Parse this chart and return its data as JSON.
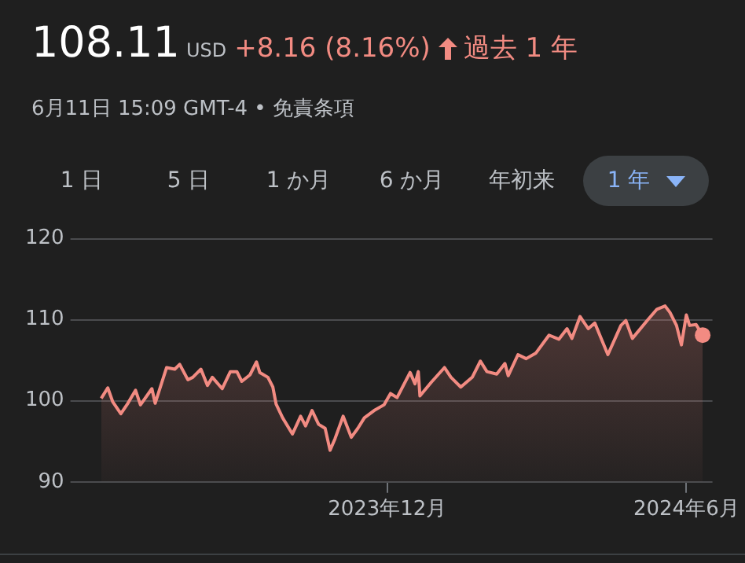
{
  "chart_data": {
    "type": "area",
    "title": "108.11",
    "subtitle": "6月11日 15:09 GMT-4 • 免責条項",
    "annotations": [
      "USD",
      "+8.16 (8.16%)",
      "過去 1 年",
      "1 日",
      "5 日",
      "1 か月",
      "6 か月",
      "年初来",
      "1 年"
    ],
    "x": [
      "2023-06-09",
      "2023-06-13",
      "2023-06-16",
      "2023-06-21",
      "2023-06-25",
      "2023-06-30",
      "2023-07-03",
      "2023-07-10",
      "2023-07-12",
      "2023-07-19",
      "2023-07-24",
      "2023-07-27",
      "2023-08-01",
      "2023-08-04",
      "2023-08-09",
      "2023-08-13",
      "2023-08-16",
      "2023-08-22",
      "2023-08-27",
      "2023-08-31",
      "2023-09-03",
      "2023-09-08",
      "2023-09-12",
      "2023-09-14",
      "2023-09-19",
      "2023-09-22",
      "2023-09-24",
      "2023-09-28",
      "2023-10-04",
      "2023-10-09",
      "2023-10-12",
      "2023-10-16",
      "2023-10-20",
      "2023-10-24",
      "2023-10-27",
      "2023-10-30",
      "2023-11-04",
      "2023-11-09",
      "2023-11-13",
      "2023-11-17",
      "2023-11-23",
      "2023-11-29",
      "2023-12-03",
      "2023-12-07",
      "2023-12-15",
      "2023-12-18",
      "2023-12-20",
      "2023-12-21",
      "2023-12-28",
      "2024-01-05",
      "2024-01-09",
      "2024-01-15",
      "2024-01-22",
      "2024-01-27",
      "2024-01-31",
      "2024-02-06",
      "2024-02-11",
      "2024-02-13",
      "2024-02-19",
      "2024-02-24",
      "2024-03-01",
      "2024-03-09",
      "2024-03-15",
      "2024-03-20",
      "2024-03-23",
      "2024-03-28",
      "2024-04-02",
      "2024-04-06",
      "2024-04-14",
      "2024-04-22",
      "2024-04-25",
      "2024-04-29",
      "2024-05-08",
      "2024-05-14",
      "2024-05-19",
      "2024-05-22",
      "2024-05-26",
      "2024-05-29",
      "2024-06-01",
      "2024-06-03",
      "2024-06-07",
      "2024-06-11"
    ],
    "series": [
      {
        "color": "#f28b82",
        "values": [
          100.3,
          101.6,
          99.9,
          98.4,
          99.6,
          101.3,
          99.5,
          101.5,
          99.7,
          104.1,
          103.9,
          104.5,
          102.6,
          102.9,
          103.9,
          101.9,
          102.9,
          101.5,
          103.6,
          103.6,
          102.4,
          103.2,
          104.8,
          103.5,
          102.9,
          101.7,
          99.6,
          97.9,
          95.9,
          98.1,
          96.9,
          98.8,
          97.1,
          96.6,
          93.9,
          95.3,
          98.1,
          95.5,
          96.6,
          97.9,
          98.8,
          99.5,
          100.9,
          100.4,
          103.5,
          102.1,
          103.6,
          100.6,
          102.3,
          104.1,
          102.9,
          101.7,
          102.9,
          104.9,
          103.6,
          103.3,
          104.6,
          103.1,
          105.7,
          105.2,
          105.9,
          108.1,
          107.6,
          108.9,
          107.7,
          110.4,
          108.9,
          109.6,
          105.7,
          109.3,
          109.9,
          107.7,
          109.9,
          111.3,
          111.7,
          110.9,
          109.3,
          106.9,
          110.6,
          109.3,
          109.4,
          108.11
        ]
      }
    ],
    "xlim": [
      "2023-05-25",
      "2024-06-17"
    ],
    "xticks": [
      {
        "value": "2023-12-01",
        "label": "2023年12月"
      },
      {
        "value": "2024-06-01",
        "label": "2024年6月"
      }
    ],
    "ylim": [
      90,
      120
    ],
    "yticks": [
      90,
      100,
      110,
      120
    ],
    "grid": "y"
  }
}
